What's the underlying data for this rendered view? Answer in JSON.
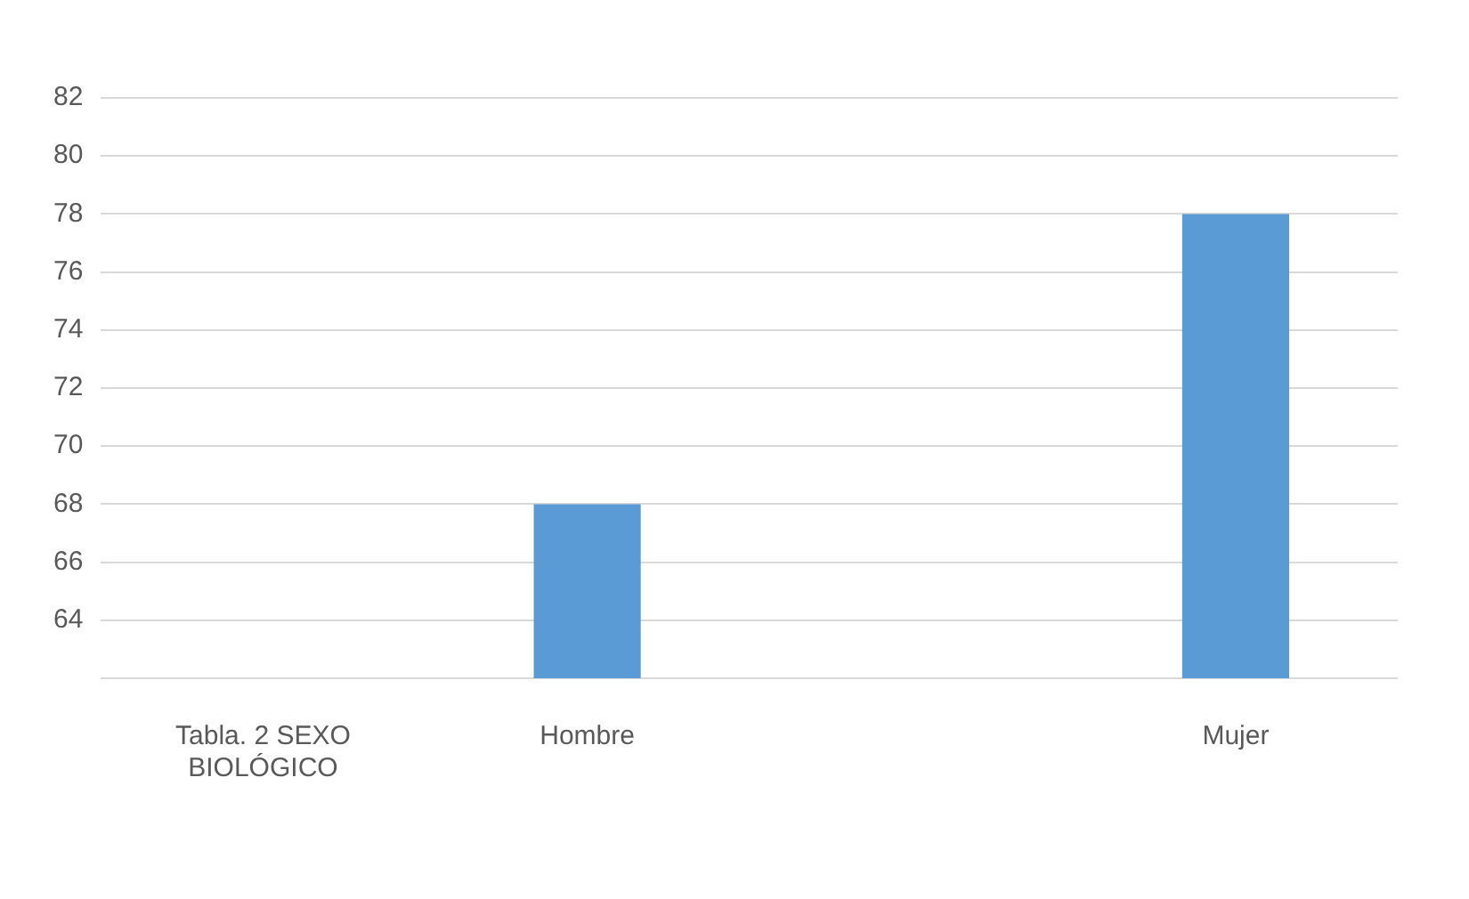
{
  "chart_data": {
    "type": "bar",
    "categories": [
      "Tabla. 2 SEXO BIOLÓGICO",
      "Hombre",
      null,
      "Mujer"
    ],
    "values": [
      null,
      68,
      null,
      78
    ],
    "color": "#5b9bd5",
    "ylim": [
      62,
      82
    ],
    "yticks": [
      {
        "value": 62,
        "label": null
      },
      64,
      66,
      68,
      70,
      72,
      74,
      76,
      78,
      80,
      82
    ],
    "grid": "y"
  }
}
